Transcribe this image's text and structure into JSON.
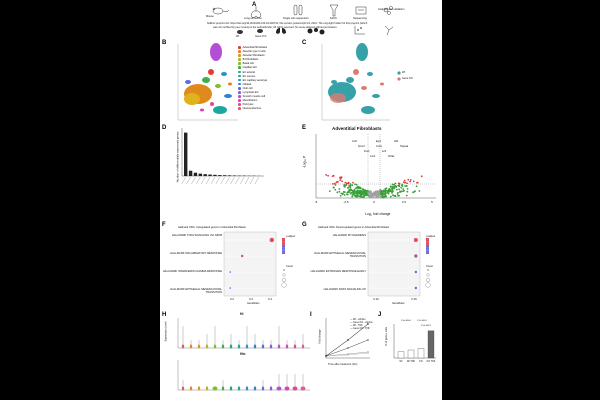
{
  "header": {
    "panel_letter": "A",
    "preprint_line1": "bioRxiv preprint doi: https://doi.org/10.1101/2021.04.19.440731; this version posted April 19, 2021. The copyright holder for this preprint (which",
    "preprint_line2": "was not certified by peer review) is the author/funder. All rights reserved. No reuse allowed without permission.",
    "workflow_steps": [
      "Mouse",
      "Lung extraction",
      "Single cell suspension",
      "FACS",
      "Sequencing",
      "Analysis and validation"
    ],
    "workflow_sub": [
      "Wt",
      "Gene 'KO'"
    ]
  },
  "panel_b": {
    "letter": "B",
    "legend": [
      "Adventitial fibroblasts",
      "Alveolar type II cells",
      "Alveolar fibroblasts",
      "B1 fibroblasts",
      "Basal cell",
      "Capillary EC",
      "EC arterial",
      "EC venous",
      "EC capillary aerocyte",
      "Ciliated",
      "Club cell",
      "Lymphatic EC",
      "Smooth muscle cell",
      "Mesothelium",
      "Pericytes",
      "Neuroendocrine"
    ],
    "colors": [
      "#e63b2e",
      "#f07e1a",
      "#d99a1c",
      "#b5b520",
      "#7fbf27",
      "#3fae49",
      "#1fa97a",
      "#1aa89f",
      "#1c9bbf",
      "#2b82d6",
      "#5b6be0",
      "#8b5ae0",
      "#b24fd6",
      "#d445b8",
      "#e04a8d",
      "#e05a6a"
    ]
  },
  "panel_c": {
    "letter": "C",
    "legend": [
      "Wt",
      "Gene KO"
    ],
    "colors": [
      "#36a2a8",
      "#e07a6f"
    ]
  },
  "panel_d": {
    "letter": "D",
    "ylabel": "Number of differentially expressed genes",
    "values": [
      330,
      40,
      25,
      18,
      14,
      11,
      9,
      7,
      6,
      5,
      4,
      3,
      3,
      2,
      2,
      1
    ]
  },
  "panel_e": {
    "letter": "E",
    "title": "Adventitial Fibroblasts",
    "xlabel": "Log₂ fold change",
    "ylabel": "-Log₁₀ P",
    "xticks": [
      "-5",
      "-2.5",
      "0",
      "2.5",
      "5"
    ],
    "genes": [
      "Ccl2",
      "Socs3",
      "Fosb",
      "Junb",
      "Egr1",
      "Cxcl1",
      "Ier3",
      "Nr4a1",
      "Atf3",
      "Hspa1a"
    ]
  },
  "panel_f": {
    "letter": "F",
    "title": "Hallmark ORA: Upregulated genes in Adventitial fibroblasts",
    "terms": [
      "HALLMARK TNFA SIGNALING VIA NFKB",
      "HALLMARK INFLAMMATORY RESPONSE",
      "HALLMARK INTERFERON GAMMA RESPONSE",
      "HALLMARK EPITHELIAL MESENCHYMAL TRANSITION"
    ],
    "xlabel": "GeneRatio",
    "xticks": [
      "0.2",
      "0.3",
      "0.4"
    ],
    "legend_title": "p.adjust",
    "count_title": "Count"
  },
  "panel_g": {
    "letter": "G",
    "title": "Hallmark ORA: Downregulated genes in Adventitial fibroblasts",
    "terms": [
      "HALLMARK MYOGENESIS",
      "HALLMARK EPITHELIAL MESENCHYMAL TRANSITION",
      "HALLMARK ESTROGEN RESPONSE EARLY",
      "HALLMARK KRAS SIGNALING UP"
    ],
    "xlabel": "GeneRatio",
    "xticks": [
      "0.10",
      "0.15"
    ],
    "legend_title": "p.adjust",
    "count_title": "Count"
  },
  "panel_h": {
    "letter": "H",
    "title_top": "Hi",
    "title_bottom": "Hlo",
    "ylabel": "Expression Level"
  },
  "panel_i": {
    "letter": "I",
    "xlabel": "Time after treatment (hrs)",
    "ylabel": "Fold change",
    "legend": [
      "Wt - vehicle",
      "Gene KO - vehicle",
      "Wt - TNF",
      "Gene KO - TNF"
    ]
  },
  "panel_j": {
    "letter": "J",
    "ylabel": "% of gene+ cells",
    "stats": [
      "P=0.0004",
      "P<0.0001",
      "P=0.0019"
    ],
    "groups": [
      "Wt",
      "Wt TNF",
      "KO",
      "KO TNF"
    ],
    "values": [
      0.8,
      1.0,
      1.2,
      3.4
    ]
  }
}
